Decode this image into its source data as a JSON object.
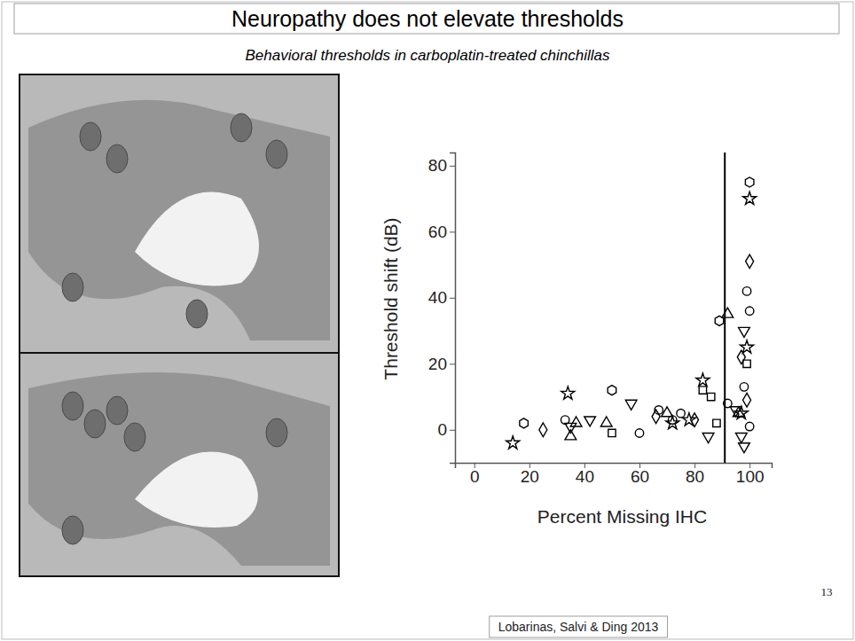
{
  "chart_data": {
    "type": "scatter",
    "title": "Neuropathy does not elevate thresholds",
    "subtitle": "Behavioral thresholds in carboplatin-treated chinchillas",
    "x_label": "Percent Missing IHC",
    "y_label": "Threshold shift (dB)",
    "annotations": [
      "13",
      "Lobarinas, Salvi & Ding 2013"
    ],
    "color": "#000000",
    "xlim": [
      -7,
      108
    ],
    "xticks": [
      0,
      20,
      40,
      60,
      80,
      100
    ],
    "ylim": [
      -10,
      84
    ],
    "yticks": [
      0,
      20,
      40,
      60,
      80
    ],
    "reference_x": 91,
    "series": [
      {
        "marker": "star",
        "x": [
          14,
          34,
          72,
          78,
          83,
          97,
          99,
          100
        ],
        "values": [
          -4,
          11,
          2,
          3,
          15,
          5,
          25,
          70
        ]
      },
      {
        "marker": "hexagon",
        "x": [
          18,
          50,
          89,
          100
        ],
        "values": [
          2,
          12,
          33,
          75
        ]
      },
      {
        "marker": "diamond",
        "x": [
          25,
          66,
          80,
          97,
          99,
          100
        ],
        "values": [
          0,
          4,
          3,
          22,
          9,
          51
        ]
      },
      {
        "marker": "circle",
        "x": [
          33,
          60,
          67,
          72,
          75,
          92,
          98,
          99,
          100,
          100
        ],
        "values": [
          3,
          -1,
          6,
          3,
          5,
          8,
          13,
          42,
          1,
          36
        ]
      },
      {
        "marker": "triangle-up",
        "x": [
          35,
          37,
          48,
          70,
          92,
          96
        ],
        "values": [
          -2,
          2,
          2,
          5,
          35,
          5
        ]
      },
      {
        "marker": "triangle-down",
        "x": [
          35,
          42,
          57,
          85,
          95,
          97,
          98,
          98
        ],
        "values": [
          1,
          3,
          8,
          -2,
          6,
          -2,
          -5,
          30
        ]
      },
      {
        "marker": "square",
        "x": [
          50,
          83,
          86,
          88,
          99
        ],
        "values": [
          -1,
          12,
          10,
          2,
          20
        ]
      }
    ]
  }
}
